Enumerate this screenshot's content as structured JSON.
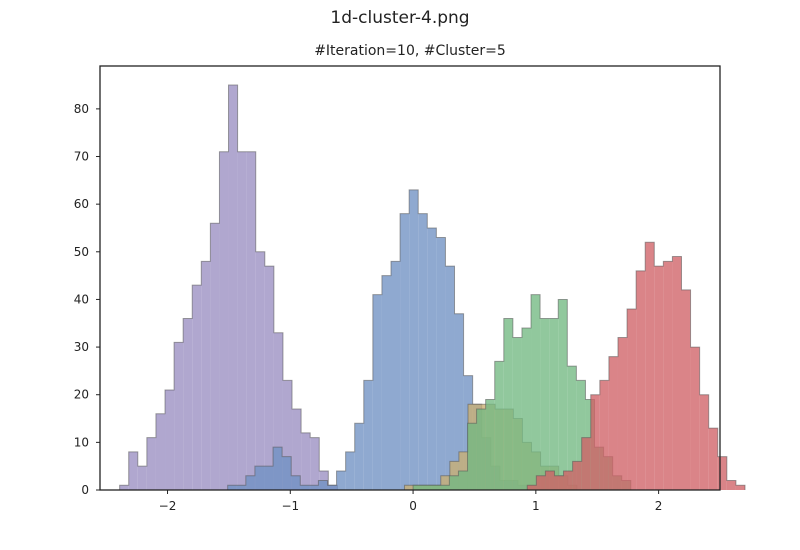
{
  "figure": {
    "suptitle": "1d-cluster-4.png",
    "title": "#Iteration=10, #Cluster=5"
  },
  "chart_data": {
    "type": "histogram",
    "title": "#Iteration=10, #Cluster=5",
    "xlabel": "",
    "ylabel": "",
    "xlim": [
      -2.55,
      2.5
    ],
    "ylim": [
      0,
      89
    ],
    "x_ticks": [
      {
        "value": -2,
        "label": "−2"
      },
      {
        "value": -1,
        "label": "−1"
      },
      {
        "value": 0,
        "label": "0"
      },
      {
        "value": 1,
        "label": "1"
      },
      {
        "value": 2,
        "label": "2"
      }
    ],
    "y_ticks": [
      0,
      10,
      20,
      30,
      40,
      50,
      60,
      70,
      80
    ],
    "grid": false,
    "legend": "none",
    "series": [
      {
        "color": "#9a8ec2",
        "bin_start": -2.39,
        "bin_width": 0.0739,
        "counts": [
          1,
          8,
          5,
          11,
          16,
          21,
          31,
          36,
          43,
          48,
          56,
          71,
          85,
          71,
          71,
          50,
          47,
          33,
          23,
          17,
          12,
          11,
          4,
          1
        ]
      },
      {
        "color": "#6f91c3",
        "bin_start": -1.51,
        "bin_width": 0.0739,
        "counts": [
          1,
          1,
          3,
          5,
          5,
          9,
          7,
          3,
          1,
          1,
          2,
          1,
          4,
          8,
          14,
          23,
          41,
          45,
          48,
          58,
          63,
          58,
          55,
          53,
          47,
          37,
          24,
          18,
          11,
          5,
          2,
          2,
          1
        ]
      },
      {
        "color": "#caaf72",
        "bin_start": -0.07,
        "bin_width": 0.0739,
        "counts": [
          1,
          1,
          1,
          1,
          3,
          6,
          8,
          18,
          18,
          18,
          17,
          17,
          15,
          10,
          8,
          5,
          5,
          3,
          1
        ]
      },
      {
        "color": "#72b882",
        "bin_start": 0.0,
        "bin_width": 0.0739,
        "counts": [
          1,
          1,
          1,
          1,
          3,
          4,
          14,
          17,
          19,
          27,
          36,
          32,
          34,
          41,
          36,
          36,
          40,
          26,
          23,
          19,
          9,
          7,
          3,
          2
        ]
      },
      {
        "color": "#cf6266",
        "bin_start": 0.93,
        "bin_width": 0.0739,
        "counts": [
          1,
          3,
          4,
          3,
          4,
          6,
          11,
          20,
          23,
          28,
          32,
          38,
          46,
          52,
          47,
          48,
          49,
          42,
          30,
          20,
          13,
          7,
          2,
          1
        ]
      }
    ]
  }
}
